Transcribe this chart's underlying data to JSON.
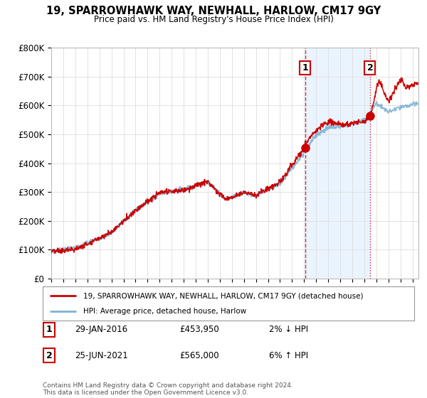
{
  "title": "19, SPARROWHAWK WAY, NEWHALL, HARLOW, CM17 9GY",
  "subtitle": "Price paid vs. HM Land Registry's House Price Index (HPI)",
  "ylabel_values": [
    "£0",
    "£100K",
    "£200K",
    "£300K",
    "£400K",
    "£500K",
    "£600K",
    "£700K",
    "£800K"
  ],
  "ylim": [
    0,
    800000
  ],
  "xlim_start": 1995,
  "xlim_end": 2025,
  "legend_line1": "19, SPARROWHAWK WAY, NEWHALL, HARLOW, CM17 9GY (detached house)",
  "legend_line2": "HPI: Average price, detached house, Harlow",
  "annotation1_label": "1",
  "annotation1_date": "29-JAN-2016",
  "annotation1_price": "£453,950",
  "annotation1_hpi": "2% ↓ HPI",
  "annotation2_label": "2",
  "annotation2_date": "25-JUN-2021",
  "annotation2_price": "£565,000",
  "annotation2_hpi": "6% ↑ HPI",
  "copyright_text": "Contains HM Land Registry data © Crown copyright and database right 2024.\nThis data is licensed under the Open Government Licence v3.0.",
  "sale1_x": 2016.08,
  "sale1_y": 453950,
  "sale2_x": 2021.48,
  "sale2_y": 565000,
  "red_color": "#cc0000",
  "blue_color": "#7fb3d3",
  "shade_color": "#ddeeff",
  "background_color": "#ffffff",
  "grid_color": "#dddddd"
}
